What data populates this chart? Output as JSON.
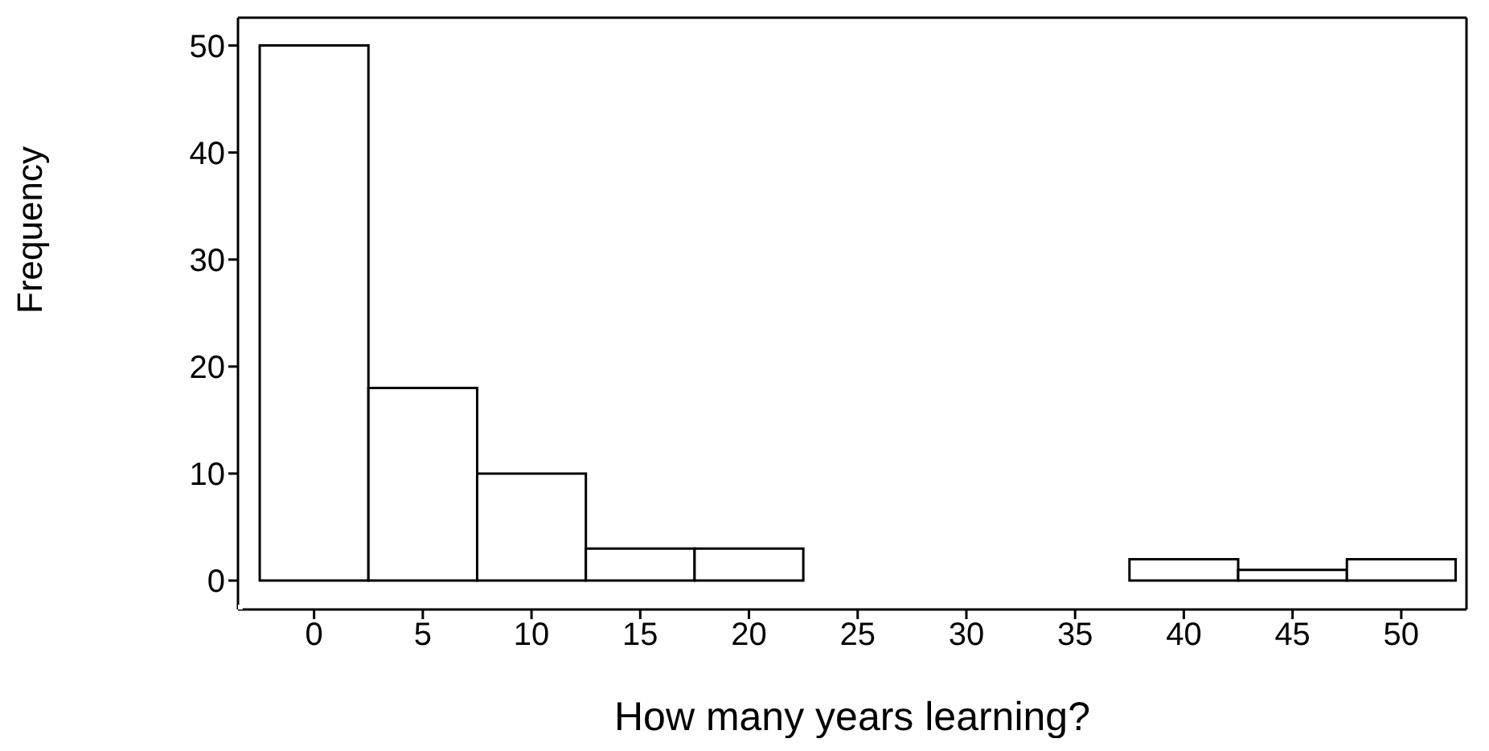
{
  "chart_data": {
    "type": "histogram",
    "xlabel": "How many years learning?",
    "ylabel": "Frequency",
    "bins": [
      -2.5,
      2.5,
      7.5,
      12.5,
      17.5,
      22.5,
      27.5,
      32.5,
      37.5,
      42.5,
      47.5,
      52.5
    ],
    "values": [
      50,
      18,
      10,
      3,
      3,
      0,
      0,
      0,
      2,
      1,
      2
    ],
    "color": "#ffffff",
    "xlim": [
      -3.5,
      53
    ],
    "xticks": [
      0,
      5,
      10,
      15,
      20,
      25,
      30,
      35,
      40,
      45,
      50
    ],
    "ylim": [
      -2.7,
      52.6
    ],
    "yticks": [
      0,
      10,
      20,
      30,
      40,
      50
    ],
    "grid": false
  }
}
